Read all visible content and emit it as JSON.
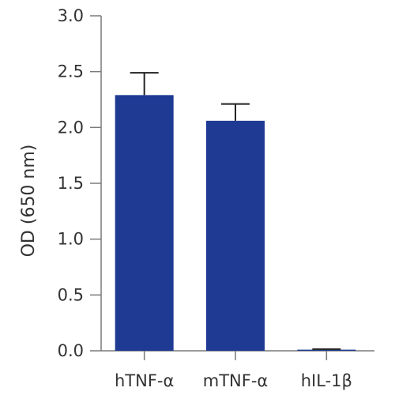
{
  "chart_data": {
    "type": "bar",
    "categories": [
      "hTNF-α",
      "mTNF-α",
      "hIL-1β"
    ],
    "values": [
      2.29,
      2.06,
      0.01
    ],
    "error": [
      0.2,
      0.15,
      0.005
    ],
    "title": "",
    "xlabel": "",
    "ylabel": "OD (650 nm)",
    "ylim": [
      0.0,
      3.0
    ],
    "yticks": [
      "0.0",
      "0.5",
      "1.0",
      "1.5",
      "2.0",
      "2.5",
      "3.0"
    ],
    "bar_color": "#1f3a93",
    "grid": false
  }
}
